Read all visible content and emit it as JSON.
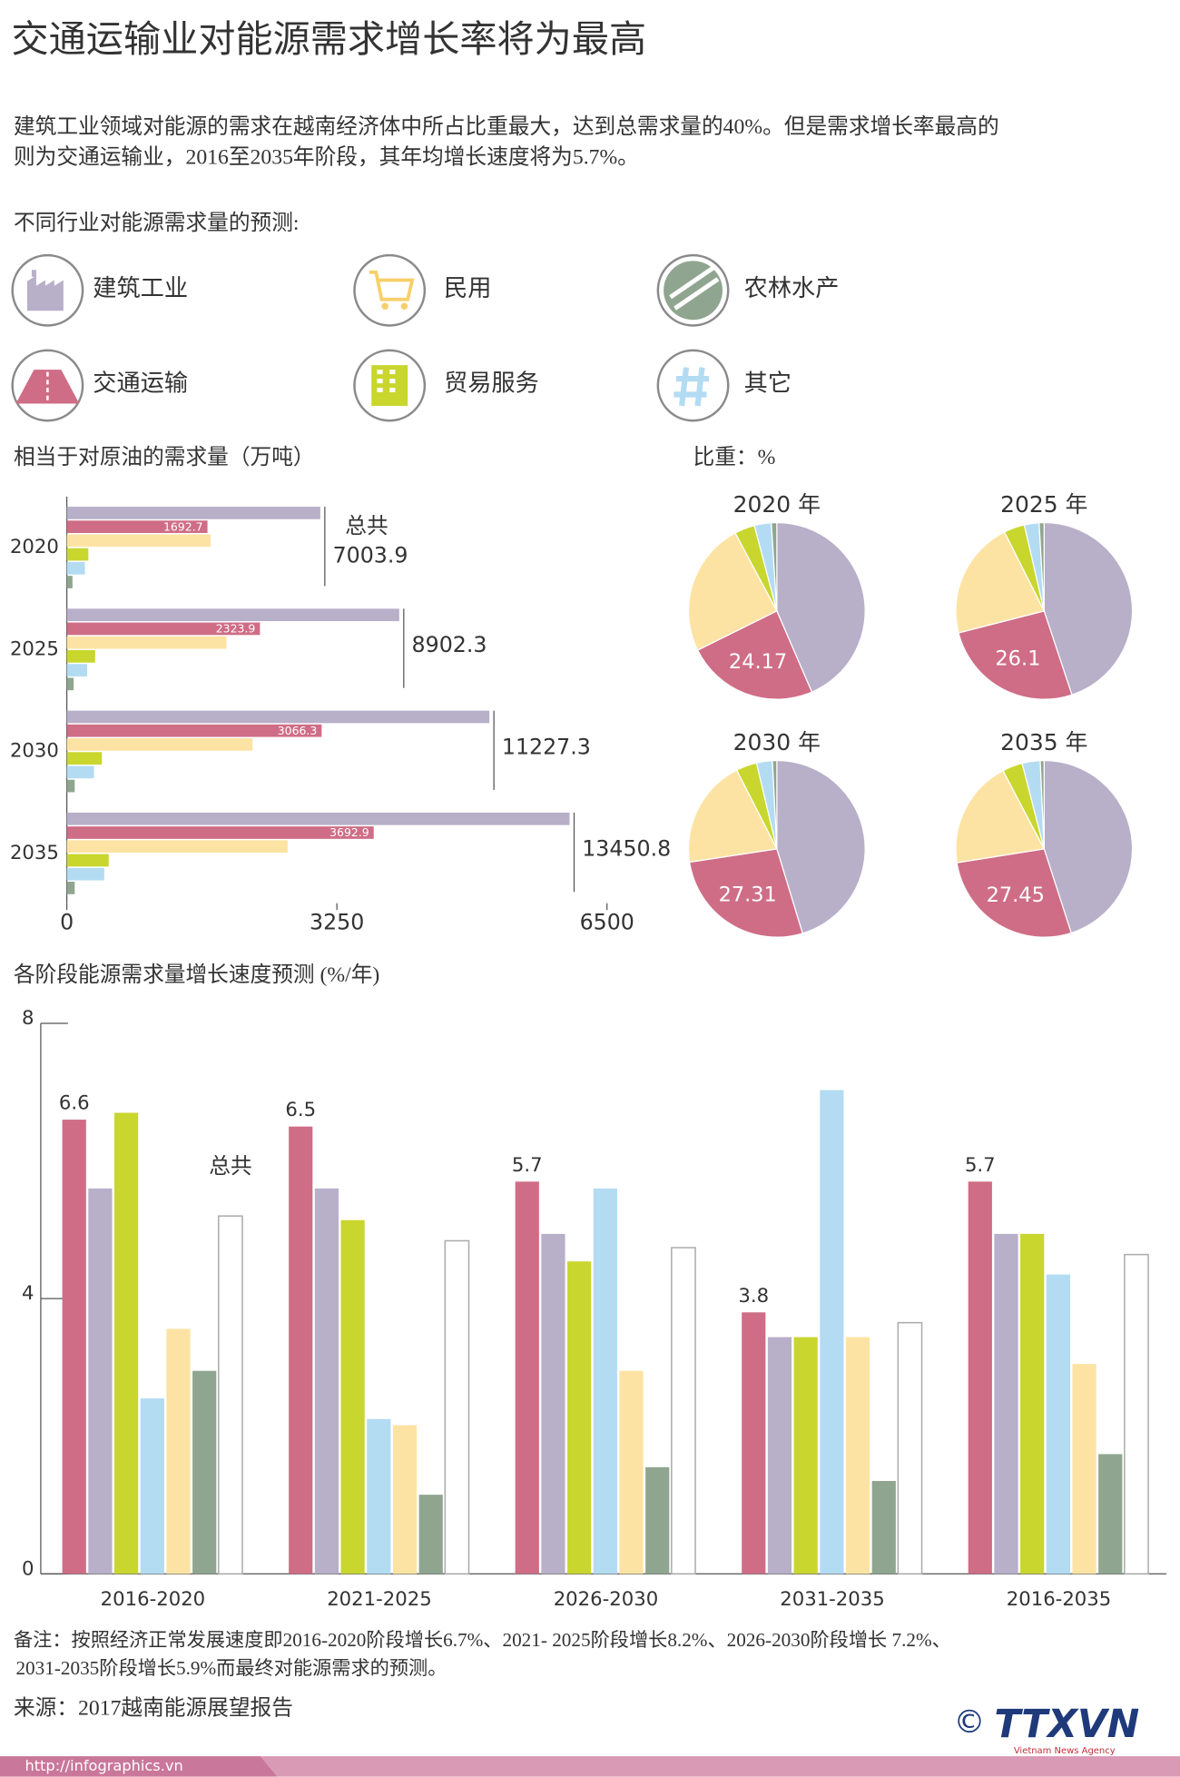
{
  "header": {
    "title": "交通运输业对能源需求增长率将为最高",
    "intro": [
      "建筑工业领域对能源的需求在越南经济体中所占比重最大，达到总需求量的40%。但是需求增长率最高的",
      "则为交通运输业，2016至2035年阶段，其年均增长速度将为5.7%。"
    ]
  },
  "legend": {
    "title": "不同行业对能源需求量的预测:",
    "items": [
      {
        "label": "建筑工业"
      },
      {
        "label": "民用"
      },
      {
        "label": "农林水产"
      },
      {
        "label": "交通运输"
      },
      {
        "label": "贸易服务"
      },
      {
        "label": "其它"
      }
    ]
  },
  "pie_section_title": "比重：%",
  "chart_data": [
    {
      "type": "hbar",
      "title": "相当于对原油的需求量（万吨）",
      "categories": [
        "2020",
        "2025",
        "2030",
        "2035"
      ],
      "series": [
        {
          "name": "建筑工业",
          "color": "#b8afc9",
          "values": [
            3050,
            4000,
            5085,
            6050
          ]
        },
        {
          "name": "交通运输",
          "color": "#cf6d86",
          "values": [
            1692.7,
            2323.9,
            3066.3,
            3692.9
          ],
          "show_values": true
        },
        {
          "name": "民用",
          "color": "#fde3a3",
          "values": [
            1730,
            1921,
            2235,
            2657
          ]
        },
        {
          "name": "贸易服务",
          "color": "#c8d62e",
          "values": [
            259,
            341,
            422,
            504
          ]
        },
        {
          "name": "其它",
          "color": "#b3dcf3",
          "values": [
            218,
            245,
            327,
            450
          ]
        },
        {
          "name": "农林水产",
          "color": "#8fa58f",
          "values": [
            68,
            82,
            95,
            95
          ]
        }
      ],
      "total_label": "总共",
      "totals": [
        7003.9,
        8902.3,
        11227.3,
        13450.8
      ],
      "xlim": [
        0,
        6500
      ],
      "xticks": [
        0,
        3250,
        6500
      ]
    },
    {
      "type": "pie",
      "title": "2020 年",
      "categories": [
        "建筑工业",
        "交通运输",
        "民用",
        "贸易服务",
        "其它",
        "农林水产"
      ],
      "colors": [
        "#b8afc9",
        "#cf6d86",
        "#fde3a3",
        "#c8d62e",
        "#b3dcf3",
        "#8fa58f"
      ],
      "values": [
        43.5,
        24.17,
        24.5,
        3.7,
        3.1,
        1.0
      ],
      "show_values": [
        false,
        true,
        false,
        false,
        false,
        false
      ]
    },
    {
      "type": "pie",
      "title": "2025 年",
      "categories": [
        "建筑工业",
        "交通运输",
        "民用",
        "贸易服务",
        "其它",
        "农林水产"
      ],
      "colors": [
        "#b8afc9",
        "#cf6d86",
        "#fde3a3",
        "#c8d62e",
        "#b3dcf3",
        "#8fa58f"
      ],
      "values": [
        44.9,
        26.1,
        21.6,
        3.8,
        2.7,
        0.9
      ],
      "show_values": [
        false,
        true,
        false,
        false,
        false,
        false
      ]
    },
    {
      "type": "pie",
      "title": "2030 年",
      "categories": [
        "建筑工业",
        "交通运输",
        "民用",
        "贸易服务",
        "其它",
        "农林水产"
      ],
      "colors": [
        "#b8afc9",
        "#cf6d86",
        "#fde3a3",
        "#c8d62e",
        "#b3dcf3",
        "#8fa58f"
      ],
      "values": [
        45.3,
        27.31,
        19.9,
        3.8,
        2.9,
        0.8
      ],
      "show_values": [
        false,
        true,
        false,
        false,
        false,
        false
      ]
    },
    {
      "type": "pie",
      "title": "2035 年",
      "categories": [
        "建筑工业",
        "交通运输",
        "民用",
        "贸易服务",
        "其它",
        "农林水产"
      ],
      "colors": [
        "#b8afc9",
        "#cf6d86",
        "#fde3a3",
        "#c8d62e",
        "#b3dcf3",
        "#8fa58f"
      ],
      "values": [
        45.0,
        27.45,
        19.8,
        3.7,
        3.3,
        0.7
      ],
      "show_values": [
        false,
        true,
        false,
        false,
        false,
        false
      ]
    },
    {
      "type": "bar",
      "title": "各阶段能源需求量增长速度预测 (%/年)",
      "categories": [
        "2016-2020",
        "2021-2025",
        "2026-2030",
        "2031-2035",
        "2016-2035"
      ],
      "series": [
        {
          "name": "交通运输",
          "color": "#cf6d86",
          "values": [
            6.6,
            6.5,
            5.7,
            3.8,
            5.7
          ],
          "show_values": true
        },
        {
          "name": "建筑工业",
          "color": "#b8afc9",
          "values": [
            5.6,
            5.6,
            4.94,
            3.44,
            4.94
          ]
        },
        {
          "name": "贸易服务",
          "color": "#c8d62e",
          "values": [
            6.7,
            5.14,
            4.54,
            3.44,
            4.94
          ]
        },
        {
          "name": "其它",
          "color": "#b3dcf3",
          "values": [
            2.55,
            2.25,
            5.6,
            7.03,
            4.35
          ]
        },
        {
          "name": "民用",
          "color": "#fde3a3",
          "values": [
            3.56,
            2.16,
            2.95,
            3.44,
            3.05
          ]
        },
        {
          "name": "农林水产",
          "color": "#8fa58f",
          "values": [
            2.95,
            1.15,
            1.55,
            1.35,
            1.74
          ]
        },
        {
          "name": "总共",
          "color": "#ffffff",
          "outline": "#aaaaaa",
          "values": [
            5.2,
            4.84,
            4.74,
            3.65,
            4.64
          ],
          "label_first": true
        }
      ],
      "ylim": [
        0,
        8
      ],
      "yticks": [
        0,
        4,
        8
      ]
    }
  ],
  "footer": {
    "note": [
      "备注：按照经济正常发展速度即2016-2020阶段增长6.7%、2021- 2025阶段增长8.2%、2026-2030阶段增长 7.2%、",
      "2031-2035阶段增长5.9%而最终对能源需求的预测。"
    ],
    "source": "来源：2017越南能源展望报告",
    "url": "http://infographics.vn",
    "copyright": "©",
    "logo": "TTXVN",
    "agency": "Vietnam News Agency"
  }
}
